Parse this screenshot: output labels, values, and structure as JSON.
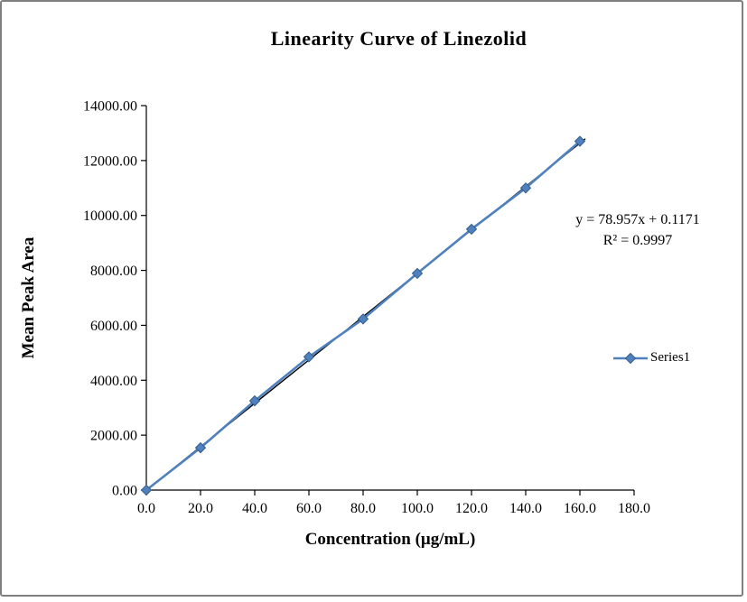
{
  "chart_data": {
    "type": "scatter",
    "title": "Linearity Curve of Linezolid",
    "xlabel": "Concentration (μg/mL)",
    "ylabel": "Mean Peak Area",
    "x": [
      0,
      20,
      40,
      60,
      80,
      100,
      120,
      140,
      160
    ],
    "series": [
      {
        "name": "Series1",
        "values": [
          0,
          1540,
          3250,
          4850,
          6230,
          7890,
          9500,
          11000,
          12700
        ],
        "color": "#4f81bd",
        "marker_border": "#385d8a",
        "marker": "diamond"
      }
    ],
    "trendline": {
      "equation": "y = 78.957x + 0.1171",
      "r_squared": "R² = 0.9997",
      "slope": 78.957,
      "intercept": 0.1171,
      "color": "#000000"
    },
    "xlim": [
      0,
      180
    ],
    "xtick_step": 20,
    "ylim": [
      0,
      14000
    ],
    "ytick_step": 2000,
    "grid": false,
    "legend": {
      "label": "Series1",
      "position": "right"
    },
    "frame_border_color": "#7f7f7f",
    "axis_color": "#000000"
  }
}
